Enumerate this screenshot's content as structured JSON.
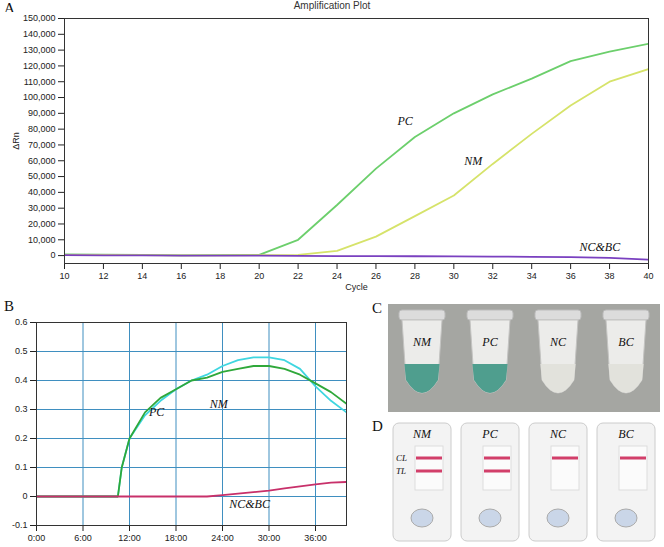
{
  "chart_data": [
    {
      "panel": "A",
      "type": "line",
      "title": "Amplification Plot",
      "xlabel": "Cycle",
      "ylabel": "ΔRn",
      "x": [
        10,
        12,
        14,
        16,
        18,
        20,
        22,
        24,
        26,
        28,
        30,
        32,
        34,
        36,
        38,
        40
      ],
      "series": [
        {
          "name": "PC",
          "color": "#6ccf6c",
          "values": [
            800,
            600,
            400,
            200,
            300,
            500,
            10000,
            32000,
            55000,
            75000,
            90000,
            102000,
            112000,
            123000,
            129000,
            134000
          ]
        },
        {
          "name": "NM",
          "color": "#d6e36a",
          "values": [
            500,
            400,
            300,
            200,
            200,
            300,
            400,
            3000,
            12000,
            25000,
            38000,
            58000,
            77000,
            95000,
            110000,
            118000
          ]
        },
        {
          "name": "NC&BC",
          "color": "#7a40c0",
          "values": [
            300,
            200,
            100,
            0,
            0,
            0,
            -200,
            -300,
            -300,
            -400,
            -500,
            -600,
            -800,
            -1000,
            -1500,
            -2500
          ]
        }
      ],
      "annotations": [
        {
          "text": "PC",
          "x": 27.5,
          "y": 85000
        },
        {
          "text": "NM",
          "x": 31,
          "y": 60000
        },
        {
          "text": "NC&BC",
          "x": 37.5,
          "y": 5500
        }
      ],
      "xlim": [
        10,
        40
      ],
      "xticks": [
        10,
        12,
        14,
        16,
        18,
        20,
        22,
        24,
        26,
        28,
        30,
        32,
        34,
        36,
        38,
        40
      ],
      "ylim": [
        -5000,
        150000
      ],
      "yticks": [
        0,
        {
          "value": 10000,
          "label": "10,000"
        },
        {
          "value": 20000,
          "label": "20,000"
        },
        {
          "value": 30000,
          "label": "30,000"
        },
        {
          "value": 40000,
          "label": "40,000"
        },
        {
          "value": 50000,
          "label": "50,000"
        },
        {
          "value": 60000,
          "label": "60,000"
        },
        {
          "value": 70000,
          "label": "70,000"
        },
        {
          "value": 80000,
          "label": "80,000"
        },
        {
          "value": 90000,
          "label": "90,000"
        },
        {
          "value": 100000,
          "label": "100,000"
        },
        {
          "value": 110000,
          "label": "110,000"
        },
        {
          "value": 120000,
          "label": "120,000"
        },
        {
          "value": 130000,
          "label": "130,000"
        },
        {
          "value": 140000,
          "label": "140,000"
        },
        {
          "value": 150000,
          "label": "150,000"
        }
      ],
      "grid": false
    },
    {
      "panel": "B",
      "type": "line",
      "x": [
        0,
        2,
        4,
        6,
        8,
        10,
        10.5,
        11,
        12,
        14,
        16,
        18,
        20,
        22,
        24,
        26,
        28,
        30,
        32,
        34,
        36,
        38,
        40
      ],
      "series": [
        {
          "name": "PC",
          "color": "#3fd6e0",
          "values": [
            0,
            0,
            0,
            0,
            0,
            0,
            0,
            0.1,
            0.2,
            0.28,
            0.33,
            0.37,
            0.4,
            0.42,
            0.45,
            0.47,
            0.48,
            0.48,
            0.47,
            0.44,
            0.38,
            0.33,
            0.29
          ]
        },
        {
          "name": "NM",
          "color": "#2fa83a",
          "values": [
            0,
            0,
            0,
            0,
            0,
            0,
            0,
            0.1,
            0.2,
            0.29,
            0.34,
            0.37,
            0.4,
            0.41,
            0.43,
            0.44,
            0.45,
            0.45,
            0.44,
            0.42,
            0.39,
            0.36,
            0.32
          ]
        },
        {
          "name": "NC&BC",
          "color": "#c8306a",
          "values": [
            0,
            0,
            0,
            0,
            0,
            0,
            0,
            0,
            0,
            0,
            0,
            0,
            0,
            0,
            0.005,
            0.01,
            0.015,
            0.02,
            0.028,
            0.035,
            0.042,
            0.048,
            0.05
          ]
        }
      ],
      "annotations": [
        {
          "text": "PC",
          "x": 15.5,
          "y": 0.29
        },
        {
          "text": "NM",
          "x": 23.5,
          "y": 0.32
        },
        {
          "text": "NC&BC",
          "x": 27.5,
          "y": -0.025
        }
      ],
      "xlim": [
        0,
        40
      ],
      "xticks": [
        {
          "value": 0,
          "label": "0:00"
        },
        {
          "value": 6,
          "label": "6:00"
        },
        {
          "value": 12,
          "label": "12:00"
        },
        {
          "value": 18,
          "label": "18:00"
        },
        {
          "value": 24,
          "label": "24:00"
        },
        {
          "value": 30,
          "label": "30:00"
        },
        {
          "value": 36,
          "label": "36:00"
        }
      ],
      "ylim": [
        -0.1,
        0.6
      ],
      "yticks": [
        -0.1,
        0,
        0.1,
        0.2,
        0.3,
        0.4,
        0.5,
        0.6
      ],
      "grid": true
    }
  ],
  "photos": [
    {
      "panel": "C",
      "tubes": [
        "NM",
        "PC",
        "NC",
        "BC"
      ],
      "colors": [
        "#4f9e8e",
        "#4f9e8e",
        "#e2e2dc",
        "#e2e2dc"
      ]
    },
    {
      "panel": "D",
      "line_labels": [
        "CL",
        "TL"
      ],
      "strips": [
        {
          "name": "NM",
          "lines": [
            "CL",
            "TL"
          ]
        },
        {
          "name": "PC",
          "lines": [
            "CL",
            "TL"
          ]
        },
        {
          "name": "NC",
          "lines": [
            "CL"
          ]
        },
        {
          "name": "BC",
          "lines": [
            "CL"
          ]
        }
      ]
    }
  ]
}
